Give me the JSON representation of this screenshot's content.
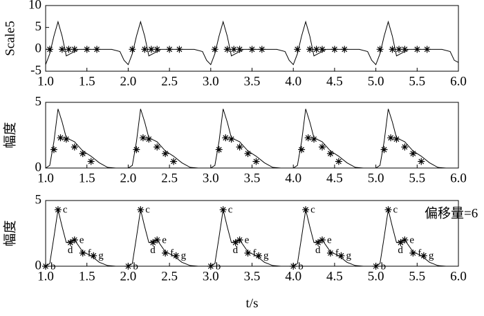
{
  "chart_data": [
    {
      "type": "line",
      "ylabel": "Scale5",
      "xlim": [
        1,
        6
      ],
      "ylim": [
        -5,
        10
      ],
      "yticks": [
        -5,
        0,
        5,
        10
      ],
      "xticks": [
        {
          "value": 1,
          "label": "1.0"
        },
        1.5,
        {
          "value": 2,
          "label": "2.0"
        },
        2.5,
        {
          "value": 3,
          "label": "3.0"
        },
        3.5,
        {
          "value": 4,
          "label": "4.0"
        },
        4.5,
        {
          "value": 5,
          "label": "5.0"
        },
        5.5,
        {
          "value": 6,
          "label": "6.0"
        }
      ],
      "series": [
        {
          "style": "line",
          "color": "#000000",
          "x": [
            1,
            1.05,
            1.1,
            1.15,
            1.2,
            1.25,
            1.3,
            1.4,
            1.6,
            1.8,
            1.9,
            1.95,
            2,
            2.05,
            2.1,
            2.15,
            2.2,
            2.25,
            2.3,
            2.4,
            2.6,
            2.8,
            2.9,
            2.95,
            3,
            3.05,
            3.1,
            3.15,
            3.2,
            3.25,
            3.3,
            3.4,
            3.6,
            3.8,
            3.9,
            3.95,
            4,
            4.05,
            4.1,
            4.15,
            4.2,
            4.25,
            4.3,
            4.4,
            4.6,
            4.8,
            4.9,
            4.95,
            5,
            5.05,
            5.1,
            5.15,
            5.2,
            5.25,
            5.3,
            5.4,
            5.6,
            5.8,
            5.9,
            5.95,
            6
          ],
          "values": [
            -3.5,
            -1,
            3,
            6.3,
            3,
            -1.5,
            -1,
            0,
            0,
            0,
            -0.5,
            -2.5,
            -3.5,
            -1,
            3,
            6.3,
            3,
            -1.5,
            -1,
            0,
            0,
            0,
            -0.5,
            -2.5,
            -3.5,
            -1,
            3,
            6.3,
            3,
            -1.5,
            -1,
            0,
            0,
            0,
            -0.5,
            -2.5,
            -3.5,
            -1,
            3,
            6.3,
            3,
            -1.5,
            -1,
            0,
            0,
            0,
            -0.5,
            -2.5,
            -3.5,
            -1,
            3,
            6.3,
            3,
            -1.5,
            -1,
            0,
            0,
            0,
            -0.5,
            -2.5,
            -3
          ]
        },
        {
          "style": "marker",
          "color": "#000000",
          "x": [
            1.05,
            1.2,
            1.28,
            1.35,
            1.5,
            1.62,
            2.05,
            2.2,
            2.28,
            2.35,
            2.5,
            2.62,
            3.05,
            3.2,
            3.28,
            3.35,
            3.5,
            3.62,
            4.05,
            4.2,
            4.28,
            4.35,
            4.5,
            4.62,
            5.05,
            5.2,
            5.28,
            5.35,
            5.5,
            5.62
          ],
          "values": [
            0,
            0,
            0,
            0,
            0,
            0,
            0,
            0,
            0,
            0,
            0,
            0,
            0,
            0,
            0,
            0,
            0,
            0,
            0,
            0,
            0,
            0,
            0,
            0,
            0,
            0,
            0,
            0,
            0,
            0
          ]
        }
      ]
    },
    {
      "type": "line",
      "ylabel": "幅度",
      "xlim": [
        1,
        6
      ],
      "ylim": [
        0,
        5
      ],
      "yticks": [
        0,
        5
      ],
      "xticks": [
        {
          "value": 1,
          "label": "1.0"
        },
        1.5,
        {
          "value": 2,
          "label": "2.0"
        },
        2.5,
        {
          "value": 3,
          "label": "3.0"
        },
        3.5,
        {
          "value": 4,
          "label": "4.0"
        },
        4.5,
        {
          "value": 5,
          "label": "5.0"
        },
        5.5,
        {
          "value": 6,
          "label": "6.0"
        }
      ],
      "series": [
        {
          "style": "line",
          "color": "#000000",
          "x": [
            1,
            1.05,
            1.1,
            1.15,
            1.2,
            1.25,
            1.35,
            1.45,
            1.55,
            1.65,
            1.75,
            1.85,
            2,
            2.05,
            2.1,
            2.15,
            2.2,
            2.25,
            2.35,
            2.45,
            2.55,
            2.65,
            2.75,
            2.85,
            3,
            3.05,
            3.1,
            3.15,
            3.2,
            3.25,
            3.35,
            3.45,
            3.55,
            3.65,
            3.75,
            3.85,
            4,
            4.05,
            4.1,
            4.15,
            4.2,
            4.25,
            4.35,
            4.45,
            4.55,
            4.65,
            4.75,
            4.85,
            5,
            5.05,
            5.1,
            5.15,
            5.2,
            5.25,
            5.35,
            5.45,
            5.55,
            5.65,
            5.75,
            5.85,
            6
          ],
          "values": [
            0,
            0.2,
            2,
            4.5,
            3.5,
            2.3,
            2,
            1.3,
            0.9,
            0.4,
            0.05,
            0,
            0,
            0.2,
            2,
            4.5,
            3.5,
            2.3,
            2,
            1.3,
            0.9,
            0.4,
            0.05,
            0,
            0,
            0.2,
            2,
            4.5,
            3.5,
            2.3,
            2,
            1.3,
            0.9,
            0.4,
            0.05,
            0,
            0,
            0.2,
            2,
            4.5,
            3.5,
            2.3,
            2,
            1.3,
            0.9,
            0.4,
            0.05,
            0,
            0,
            0.2,
            2,
            4.5,
            3.5,
            2.3,
            2,
            1.3,
            0.9,
            0.4,
            0.05,
            0,
            0
          ]
        },
        {
          "style": "marker",
          "color": "#000000",
          "x": [
            1.1,
            1.18,
            1.25,
            1.35,
            1.45,
            1.55,
            2.1,
            2.18,
            2.25,
            2.35,
            2.45,
            2.55,
            3.1,
            3.18,
            3.25,
            3.35,
            3.45,
            3.55,
            4.1,
            4.18,
            4.25,
            4.35,
            4.45,
            4.55,
            5.1,
            5.18,
            5.25,
            5.35,
            5.45,
            5.55
          ],
          "values": [
            1.4,
            2.3,
            2.2,
            1.6,
            1.1,
            0.5,
            1.4,
            2.3,
            2.2,
            1.6,
            1.1,
            0.5,
            1.4,
            2.3,
            2.2,
            1.6,
            1.1,
            0.5,
            1.4,
            2.3,
            2.2,
            1.6,
            1.1,
            0.5,
            1.4,
            2.3,
            2.2,
            1.6,
            1.1,
            0.5
          ]
        }
      ]
    },
    {
      "type": "line",
      "ylabel": "幅度",
      "xlabel": "t/s",
      "annotation": "偏移量=6",
      "xlim": [
        1,
        6
      ],
      "ylim": [
        0,
        5
      ],
      "yticks": [
        0,
        5
      ],
      "xticks": [
        {
          "value": 1,
          "label": "1.0"
        },
        1.5,
        {
          "value": 2,
          "label": "2.0"
        },
        2.5,
        {
          "value": 3,
          "label": "3.0"
        },
        3.5,
        {
          "value": 4,
          "label": "4.0"
        },
        4.5,
        {
          "value": 5,
          "label": "5.0"
        },
        5.5,
        {
          "value": 6,
          "label": "6.0"
        }
      ],
      "series": [
        {
          "style": "line",
          "color": "#000000",
          "x": [
            1,
            1.05,
            1.1,
            1.15,
            1.2,
            1.25,
            1.35,
            1.45,
            1.55,
            1.65,
            1.75,
            1.85,
            2,
            2.05,
            2.1,
            2.15,
            2.2,
            2.25,
            2.35,
            2.45,
            2.55,
            2.65,
            2.75,
            2.85,
            3,
            3.05,
            3.1,
            3.15,
            3.2,
            3.25,
            3.35,
            3.45,
            3.55,
            3.65,
            3.75,
            3.85,
            4,
            4.05,
            4.1,
            4.15,
            4.2,
            4.25,
            4.35,
            4.45,
            4.55,
            4.65,
            4.75,
            4.85,
            5,
            5.05,
            5.1,
            5.15,
            5.2,
            5.25,
            5.35,
            5.45,
            5.55,
            5.65,
            5.75,
            5.85,
            6
          ],
          "values": [
            0,
            0.2,
            2.2,
            4.3,
            3,
            1.8,
            2,
            1.1,
            0.8,
            0.3,
            0.05,
            0,
            0,
            0.2,
            2.2,
            4.3,
            3,
            1.8,
            2,
            1.1,
            0.8,
            0.3,
            0.05,
            0,
            0,
            0.2,
            2.2,
            4.3,
            3,
            1.8,
            2,
            1.1,
            0.8,
            0.3,
            0.05,
            0,
            0,
            0.2,
            2.2,
            4.3,
            3,
            1.8,
            2,
            1.1,
            0.8,
            0.3,
            0.05,
            0,
            0,
            0.2,
            2.2,
            4.3,
            3,
            1.8,
            2,
            1.1,
            0.8,
            0.3,
            0.05,
            0,
            0
          ]
        },
        {
          "style": "marker",
          "color": "#000000",
          "x": [
            1,
            1.15,
            1.3,
            1.35,
            1.45,
            1.58,
            2,
            2.15,
            2.3,
            2.35,
            2.45,
            2.58,
            3,
            3.15,
            3.3,
            3.35,
            3.45,
            3.58,
            4,
            4.15,
            4.3,
            4.35,
            4.45,
            4.58,
            5,
            5.15,
            5.3,
            5.35,
            5.45,
            5.58
          ],
          "values": [
            0,
            4.3,
            1.8,
            2,
            1,
            0.8,
            0,
            4.3,
            1.8,
            2,
            1,
            0.8,
            0,
            4.3,
            1.8,
            2,
            1,
            0.8,
            0,
            4.3,
            1.8,
            2,
            1,
            0.8,
            0,
            4.3,
            1.8,
            2,
            1,
            0.8
          ],
          "point_labels": [
            "b",
            "c",
            "d",
            "e",
            "f",
            "g",
            "b",
            "c",
            "d",
            "e",
            "f",
            "g",
            "b",
            "c",
            "d",
            "e",
            "f",
            "g",
            "b",
            "c",
            "d",
            "e",
            "f",
            "g",
            "b",
            "c",
            "d",
            "e",
            "f",
            "g"
          ]
        }
      ]
    }
  ]
}
